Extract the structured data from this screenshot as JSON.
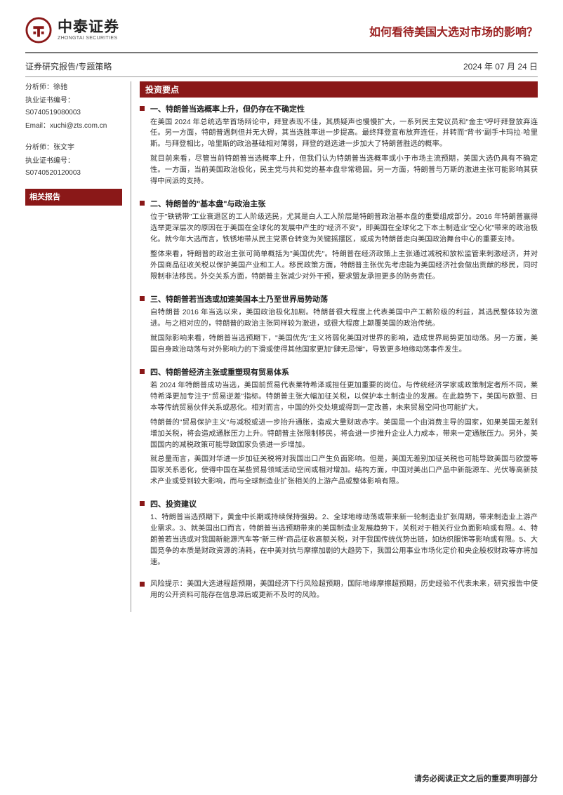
{
  "header": {
    "logo_cn": "中泰证券",
    "logo_en": "ZHONGTAI SECURITIES",
    "logo_color": "#8a1818",
    "title": "如何看待美国大选对市场的影响？",
    "title_color": "#9a1f1f"
  },
  "subheader": {
    "left": "证券研究报告/专题策略",
    "right": "2024 年 07 月 24 日"
  },
  "left_panel": {
    "analysts": [
      {
        "name_label": "分析师：徐驰",
        "cert_label": "执业证书编号：S0740519080003",
        "email_label": "Email：xuchi@zts.com.cn"
      },
      {
        "name_label": "分析师：张文宇",
        "cert_label": "执业证书编号：S0740520120003"
      }
    ],
    "related_reports_header": "相关报告"
  },
  "right_panel": {
    "invest_header": "投资要点",
    "sections": [
      {
        "title": "一、特朗普当选概率上升，但仍存在不确定性",
        "paragraphs": [
          "在美国 2024 年总统选举首场辩论中，拜登表现不佳，其质疑声也慢慢扩大，一系列民主党议员和\"金主\"呼吁拜登放弃连任。另一方面，特朗普遇刺但并无大碍，其当选胜率进一步提高。最终拜登宣布放弃连任，并转而\"背书\"副手卡玛拉·哈里斯。与拜登相比，哈里斯的政治基础相对薄弱，拜登的退选进一步加大了特朗普胜选的概率。",
          "就目前来看，尽管当前特朗普当选概率上升，但我们认为特朗普当选概率或小于市场主流预期，美国大选仍具有不确定性。一方面，当前美国政治极化，民主党与共和党的基本盘非常稳固。另一方面，特朗普与万斯的激进主张可能影响其获得中间派的支持。"
        ]
      },
      {
        "title": "二、特朗普的\"基本盘\"与政治主张",
        "paragraphs": [
          "位于\"铁锈带\"工业衰退区的工人阶级选民，尤其是白人工人阶层是特朗普政治基本盘的重要组成部分。2016 年特朗普赢得选举更深层次的原因在于美国在全球化的发展中产生的\"经济不安\"，即美国在全球化之下本土制造业\"空心化\"带来的政治极化。就今年大选而言，铁锈地带从民主党票仓转变为关键摇摆区，或成为特朗普走向美国政治舞台中心的重要支持。",
          "整体来看，特朗普的政治主张可简单概括为\"美国优先\"。特朗普在经济政策上主张通过减税和放松监管来刺激经济，并对外国商品征收关税以保护美国产业和工人。移民政策方面，特朗普主张优先考虑能为美国经济社会做出贡献的移民，同时限制非法移民。外交关系方面，特朗普主张减少对外干预，要求盟友承担更多的防务责任。"
        ]
      },
      {
        "title": "三、特朗普若当选或加速美国本土乃至世界局势动荡",
        "paragraphs": [
          "自特朗普 2016 年当选以来，美国政治极化加剧。特朗普很大程度上代表美国中产工薪阶级的利益，其选民整体较为激进。与之相对应的，特朗普的政治主张同样较为激进，或很大程度上颠覆美国的政治传统。",
          "就国际影响来看，特朗普当选预期下，\"美国优先\"主义将弱化美国对世界的影响，造成世界局势更加动荡。另一方面，美国自身政治动荡与对外影响力的下滑或使得其他国家更加\"肆无忌惮\"，导致更多地缘动荡事件发生。"
        ]
      },
      {
        "title": "四、特朗普经济主张或重塑现有贸易体系",
        "paragraphs": [
          "若 2024 年特朗普成功当选，美国前贸易代表莱特希泽或担任更加重要的岗位。与传统经济学家或政策制定者所不同，莱特希泽更加专注于\"贸易逆差\"指标。特朗普主张大幅加征关税，以保护本土制造业的发展。在此趋势下，美国与欧盟、日本等传统贸易伙伴关系或恶化。相对而言，中国的外交处境或得到一定改善，未来贸易空间也可能扩大。",
          "特朗普的\"贸易保护主义\"与减税或进一步抬升通胀，造成大量财政赤字。美国是一个由消费主导的国家，如果美国无差别增加关税，将会造成通胀压力上升。特朗普主张限制移民，将会进一步推升企业人力成本，带来一定通胀压力。另外，美国国内的减税政策可能导致国家负债进一步增加。",
          "就总量而言，美国对华进一步加征关税将对我国出口产生负面影响。但是，美国无差别加征关税也可能导致美国与欧盟等国家关系恶化，使得中国在某些贸易领域活动空间或相对增加。结构方面，中国对美出口产品中新能源车、光伏等高新技术产业或受到较大影响，而与全球制造业扩张相关的上游产品或整体影响有限。"
        ]
      },
      {
        "title": "四、投资建议",
        "paragraphs": [
          "1、特朗普当选预期下，黄金中长期或持续保持强势。2、全球地缘动荡或带来新一轮制造业扩张周期，带来制造业上游产业需求。3、就美国出口而言，特朗普当选预期带来的美国制造业发展趋势下，关税对于相关行业负面影响或有限。4、特朗普若当选或对我国新能源汽车等\"新三样\"商品征收高额关税，对于我国传统优势出链，如纺织服饰等影响或有限。5、大国竞争的本质是财政资源的消耗，在中美对抗与摩擦加剧的大趋势下，我国公用事业市场化定价和央企股权财政等亦将加速。"
        ]
      },
      {
        "title": "",
        "paragraphs": [
          "风险提示：美国大选进程超预期，美国经济下行风险超预期，国际地缘摩擦超预期，历史经验不代表未来，研究报告中使用的公开资料可能存在信息滞后或更新不及时的风险。"
        ]
      }
    ]
  },
  "footer": "请务必阅读正文之后的重要声明部分",
  "colors": {
    "brand": "#8a1818",
    "title": "#9a1f1f",
    "text": "#333333",
    "rule": "#999999",
    "background": "#ffffff"
  }
}
